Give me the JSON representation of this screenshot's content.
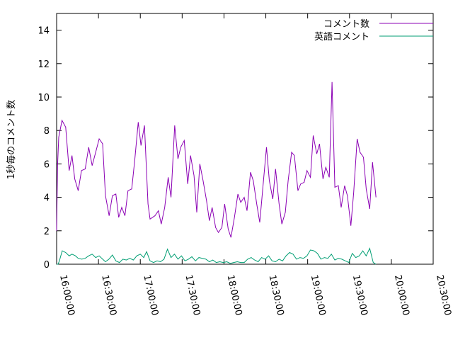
{
  "chart_data": {
    "type": "line",
    "title": "",
    "xlabel": "",
    "ylabel": "1秒毎のコメント数",
    "xlim": [
      "16:00:00",
      "20:30:00"
    ],
    "ylim": [
      0,
      15
    ],
    "x_tick_labels": [
      "16:00:00",
      "16:30:00",
      "17:00:00",
      "17:30:00",
      "18:00:00",
      "18:30:00",
      "19:00:00",
      "19:30:00",
      "20:00:00",
      "20:30:00"
    ],
    "y_ticks": [
      0,
      2,
      4,
      6,
      8,
      10,
      12,
      14
    ],
    "grid": false,
    "legend_position": "top-right",
    "series": [
      {
        "name": "コメント数",
        "color": "#8b00b4",
        "points": [
          [
            "16:00:00",
            2.0
          ],
          [
            "16:00:40",
            5.9
          ],
          [
            "16:01:30",
            7.6
          ],
          [
            "16:03:50",
            8.6
          ],
          [
            "16:06:30",
            8.2
          ],
          [
            "16:09:00",
            5.6
          ],
          [
            "16:11:00",
            6.5
          ],
          [
            "16:13:00",
            5.1
          ],
          [
            "16:15:30",
            4.4
          ],
          [
            "16:17:50",
            5.6
          ],
          [
            "16:20:30",
            5.7
          ],
          [
            "16:23:00",
            7.0
          ],
          [
            "16:25:30",
            5.9
          ],
          [
            "16:28:00",
            6.7
          ],
          [
            "16:30:30",
            7.5
          ],
          [
            "16:33:00",
            7.2
          ],
          [
            "16:35:00",
            4.1
          ],
          [
            "16:37:40",
            2.9
          ],
          [
            "16:40:00",
            4.1
          ],
          [
            "16:42:30",
            4.2
          ],
          [
            "16:44:30",
            2.8
          ],
          [
            "16:46:40",
            3.4
          ],
          [
            "16:49:00",
            2.9
          ],
          [
            "16:51:10",
            4.4
          ],
          [
            "16:53:50",
            4.5
          ],
          [
            "16:56:00",
            6.2
          ],
          [
            "16:58:30",
            8.5
          ],
          [
            "17:00:30",
            7.1
          ],
          [
            "17:03:00",
            8.3
          ],
          [
            "17:05:30",
            3.6
          ],
          [
            "17:07:00",
            2.7
          ],
          [
            "17:10:30",
            2.9
          ],
          [
            "17:13:00",
            3.2
          ],
          [
            "17:15:00",
            2.4
          ],
          [
            "17:17:30",
            3.4
          ],
          [
            "17:20:00",
            5.2
          ],
          [
            "17:22:00",
            4.0
          ],
          [
            "17:24:40",
            8.3
          ],
          [
            "17:27:00",
            6.3
          ],
          [
            "17:29:00",
            7.0
          ],
          [
            "17:31:30",
            7.4
          ],
          [
            "17:34:00",
            4.8
          ],
          [
            "17:36:00",
            6.5
          ],
          [
            "17:38:30",
            5.3
          ],
          [
            "17:40:30",
            3.1
          ],
          [
            "17:42:40",
            6.0
          ],
          [
            "17:45:00",
            5.0
          ],
          [
            "17:47:30",
            3.8
          ],
          [
            "17:49:30",
            2.6
          ],
          [
            "17:51:30",
            3.4
          ],
          [
            "17:54:00",
            2.2
          ],
          [
            "17:56:00",
            1.9
          ],
          [
            "17:58:30",
            2.2
          ],
          [
            "18:00:30",
            3.6
          ],
          [
            "18:03:00",
            2.1
          ],
          [
            "18:05:00",
            1.6
          ],
          [
            "18:07:30",
            2.8
          ],
          [
            "18:10:00",
            4.2
          ],
          [
            "18:12:00",
            3.7
          ],
          [
            "18:14:30",
            4.0
          ],
          [
            "18:16:30",
            3.2
          ],
          [
            "18:19:00",
            5.5
          ],
          [
            "18:21:00",
            5.0
          ],
          [
            "18:23:30",
            3.6
          ],
          [
            "18:25:40",
            2.5
          ],
          [
            "18:28:00",
            4.7
          ],
          [
            "18:30:30",
            7.0
          ],
          [
            "18:32:30",
            5.0
          ],
          [
            "18:35:00",
            3.9
          ],
          [
            "18:37:00",
            5.7
          ],
          [
            "18:39:30",
            3.6
          ],
          [
            "18:41:30",
            2.4
          ],
          [
            "18:44:00",
            3.1
          ],
          [
            "18:46:00",
            5.0
          ],
          [
            "18:48:30",
            6.7
          ],
          [
            "18:50:30",
            6.5
          ],
          [
            "18:53:00",
            4.4
          ],
          [
            "18:55:00",
            4.8
          ],
          [
            "18:57:30",
            4.9
          ],
          [
            "18:59:30",
            5.6
          ],
          [
            "19:02:00",
            5.2
          ],
          [
            "19:04:00",
            7.7
          ],
          [
            "19:06:30",
            6.6
          ],
          [
            "19:08:30",
            7.2
          ],
          [
            "19:11:00",
            5.1
          ],
          [
            "19:13:00",
            5.8
          ],
          [
            "19:15:30",
            5.2
          ],
          [
            "19:17:30",
            10.9
          ],
          [
            "19:19:30",
            4.6
          ],
          [
            "19:22:00",
            4.7
          ],
          [
            "19:24:00",
            3.4
          ],
          [
            "19:26:30",
            4.7
          ],
          [
            "19:28:30",
            4.1
          ],
          [
            "19:31:00",
            2.3
          ],
          [
            "19:33:00",
            4.3
          ],
          [
            "19:35:30",
            7.5
          ],
          [
            "19:37:30",
            6.7
          ],
          [
            "19:40:00",
            6.4
          ],
          [
            "19:42:00",
            4.5
          ],
          [
            "19:44:30",
            3.3
          ],
          [
            "19:46:30",
            6.1
          ],
          [
            "19:49:00",
            4.0
          ]
        ]
      },
      {
        "name": "英語コメント",
        "color": "#009e73",
        "points": [
          [
            "16:00:00",
            0.0
          ],
          [
            "16:01:00",
            0.0
          ],
          [
            "16:02:00",
            0.2
          ],
          [
            "16:04:00",
            0.8
          ],
          [
            "16:06:30",
            0.7
          ],
          [
            "16:09:00",
            0.5
          ],
          [
            "16:11:00",
            0.6
          ],
          [
            "16:13:30",
            0.5
          ],
          [
            "16:15:30",
            0.35
          ],
          [
            "16:18:00",
            0.3
          ],
          [
            "16:20:30",
            0.35
          ],
          [
            "16:23:00",
            0.5
          ],
          [
            "16:25:30",
            0.6
          ],
          [
            "16:28:00",
            0.4
          ],
          [
            "16:30:30",
            0.5
          ],
          [
            "16:33:00",
            0.3
          ],
          [
            "16:35:00",
            0.15
          ],
          [
            "16:37:30",
            0.3
          ],
          [
            "16:40:00",
            0.55
          ],
          [
            "16:42:30",
            0.2
          ],
          [
            "16:45:00",
            0.1
          ],
          [
            "16:47:30",
            0.3
          ],
          [
            "16:50:00",
            0.25
          ],
          [
            "16:52:30",
            0.35
          ],
          [
            "16:55:00",
            0.25
          ],
          [
            "16:57:30",
            0.5
          ],
          [
            "17:00:00",
            0.6
          ],
          [
            "17:02:30",
            0.4
          ],
          [
            "17:04:30",
            0.75
          ],
          [
            "17:07:00",
            0.2
          ],
          [
            "17:09:30",
            0.1
          ],
          [
            "17:12:00",
            0.2
          ],
          [
            "17:14:30",
            0.15
          ],
          [
            "17:17:00",
            0.3
          ],
          [
            "17:19:30",
            0.9
          ],
          [
            "17:22:00",
            0.4
          ],
          [
            "17:24:30",
            0.6
          ],
          [
            "17:27:00",
            0.3
          ],
          [
            "17:29:30",
            0.5
          ],
          [
            "17:32:00",
            0.2
          ],
          [
            "17:34:30",
            0.3
          ],
          [
            "17:37:00",
            0.45
          ],
          [
            "17:39:30",
            0.2
          ],
          [
            "17:42:00",
            0.4
          ],
          [
            "17:44:30",
            0.35
          ],
          [
            "17:47:00",
            0.3
          ],
          [
            "17:49:30",
            0.15
          ],
          [
            "17:52:00",
            0.25
          ],
          [
            "17:54:30",
            0.1
          ],
          [
            "17:57:00",
            0.15
          ],
          [
            "17:59:30",
            0.1
          ],
          [
            "18:02:00",
            0.15
          ],
          [
            "18:04:30",
            0.05
          ],
          [
            "18:07:00",
            0.1
          ],
          [
            "18:09:30",
            0.15
          ],
          [
            "18:12:00",
            0.1
          ],
          [
            "18:14:30",
            0.1
          ],
          [
            "18:17:00",
            0.3
          ],
          [
            "18:19:30",
            0.4
          ],
          [
            "18:22:00",
            0.25
          ],
          [
            "18:24:30",
            0.15
          ],
          [
            "18:27:00",
            0.4
          ],
          [
            "18:29:30",
            0.3
          ],
          [
            "18:32:00",
            0.5
          ],
          [
            "18:34:30",
            0.2
          ],
          [
            "18:37:00",
            0.15
          ],
          [
            "18:39:30",
            0.3
          ],
          [
            "18:42:00",
            0.2
          ],
          [
            "18:44:30",
            0.5
          ],
          [
            "18:47:00",
            0.7
          ],
          [
            "18:49:30",
            0.6
          ],
          [
            "18:52:00",
            0.3
          ],
          [
            "18:54:30",
            0.4
          ],
          [
            "18:57:00",
            0.35
          ],
          [
            "18:59:30",
            0.5
          ],
          [
            "19:02:00",
            0.85
          ],
          [
            "19:04:30",
            0.8
          ],
          [
            "19:07:00",
            0.65
          ],
          [
            "19:09:30",
            0.3
          ],
          [
            "19:12:00",
            0.4
          ],
          [
            "19:14:30",
            0.35
          ],
          [
            "19:17:00",
            0.6
          ],
          [
            "19:19:30",
            0.25
          ],
          [
            "19:22:00",
            0.35
          ],
          [
            "19:24:30",
            0.3
          ],
          [
            "19:27:00",
            0.2
          ],
          [
            "19:29:30",
            0.1
          ],
          [
            "19:32:00",
            0.65
          ],
          [
            "19:34:30",
            0.4
          ],
          [
            "19:37:00",
            0.5
          ],
          [
            "19:39:30",
            0.8
          ],
          [
            "19:42:00",
            0.5
          ],
          [
            "19:44:30",
            0.95
          ],
          [
            "19:47:00",
            0.1
          ],
          [
            "19:49:00",
            0.0
          ]
        ]
      }
    ]
  }
}
